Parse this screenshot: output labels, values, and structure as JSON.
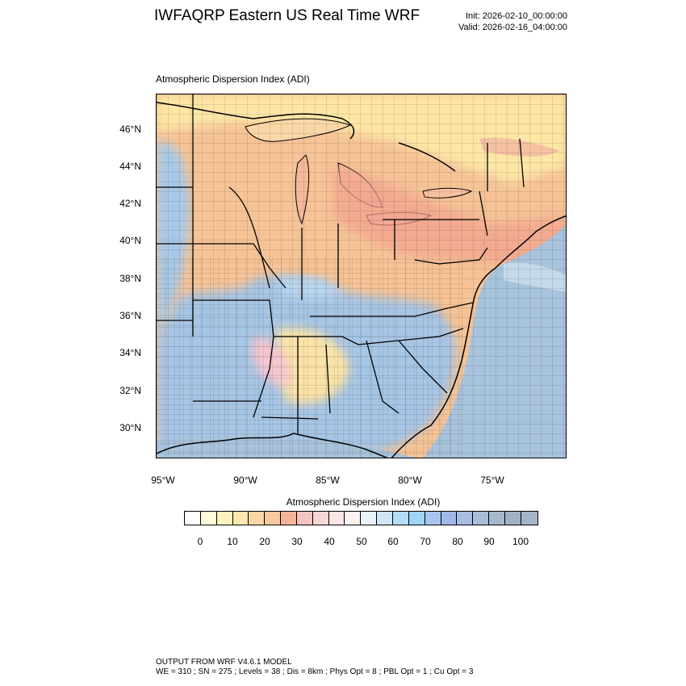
{
  "header": {
    "title": "IWFAQRP Eastern US Real Time WRF",
    "init": "Init: 2026-02-10_00:00:00",
    "valid": "Valid: 2026-02-16_04:00:00"
  },
  "map": {
    "field_title": "Atmospheric Dispersion Index   (ADI)",
    "lat_labels": [
      "46°N",
      "44°N",
      "42°N",
      "40°N",
      "38°N",
      "36°N",
      "34°N",
      "32°N",
      "30°N"
    ],
    "lon_labels": [
      "95°W",
      "90°W",
      "85°W",
      "80°W",
      "75°W"
    ],
    "colors": {
      "land_low": "#fde9a8",
      "land_mid": "#f4b98a",
      "land_high": "#f09a80",
      "lake": "#fbe0b0",
      "water_ocean": "#a8c3dc",
      "blue_region": "#a9c8e6",
      "light_blue": "#d7ebf8",
      "pink": "#f7c6cf"
    }
  },
  "colorbar": {
    "title": "Atmospheric Dispersion Index  (ADI)",
    "tick_labels": [
      "0",
      "10",
      "20",
      "30",
      "40",
      "50",
      "60",
      "70",
      "80",
      "90",
      "100"
    ],
    "colors": [
      "#ffffff",
      "#fffbd8",
      "#fff2c0",
      "#fde8ad",
      "#fbd7a6",
      "#f9c9a0",
      "#f5b39a",
      "#f4c4c2",
      "#f8d6d8",
      "#fbe5e6",
      "#fdf3f3",
      "#e9f2fb",
      "#cfe6f7",
      "#b4dcf5",
      "#9fd5f6",
      "#a8c6ef",
      "#a1b8ea",
      "#a7bde2",
      "#a9bcd8",
      "#a7b9cf",
      "#a0b2c6",
      "#a5b5c8"
    ]
  },
  "footer": {
    "line1": "OUTPUT FROM WRF V4.6.1 MODEL",
    "line2": "WE = 310 ; SN = 275 ; Levels = 38 ; Dis = 8km ; Phys Opt = 8 ; PBL Opt = 1 ; Cu Opt = 3"
  }
}
